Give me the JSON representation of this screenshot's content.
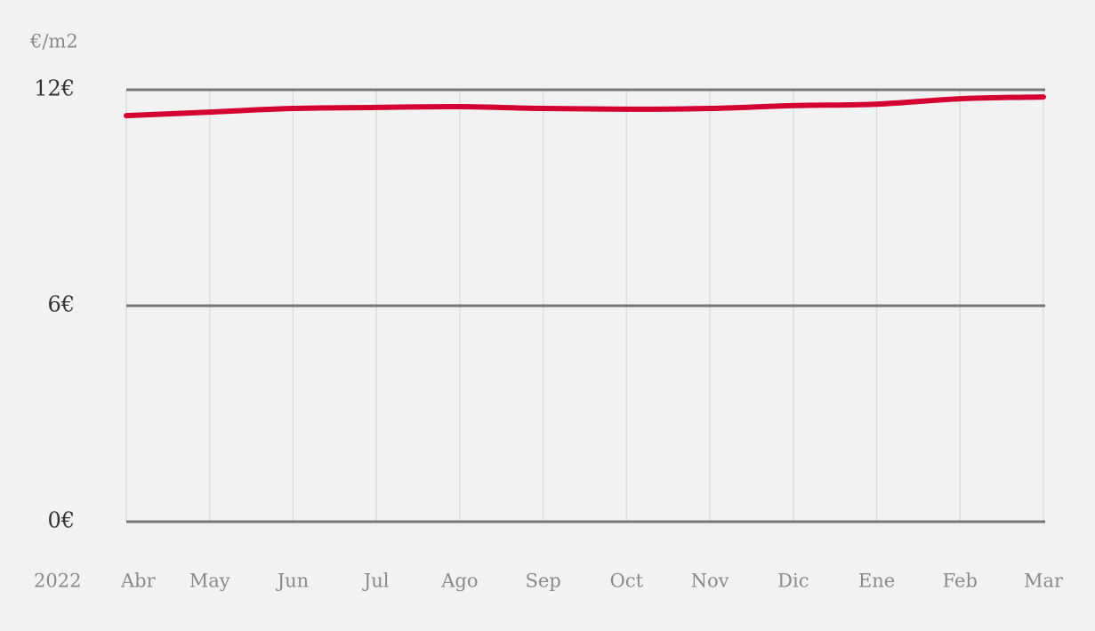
{
  "chart_data": {
    "type": "line",
    "y_label": "€/m2",
    "year_label": "2022",
    "categories": [
      "Abr",
      "May",
      "Jun",
      "Jul",
      "Ago",
      "Sep",
      "Oct",
      "Nov",
      "Dic",
      "Ene",
      "Feb",
      "Mar"
    ],
    "values": [
      11.28,
      11.38,
      11.48,
      11.51,
      11.53,
      11.48,
      11.46,
      11.48,
      11.56,
      11.6,
      11.75,
      11.8
    ],
    "color": "#d50032",
    "ylim": [
      0,
      12
    ],
    "yticks": [
      {
        "value": 0,
        "label": "0€"
      },
      {
        "value": 6,
        "label": "6€"
      },
      {
        "value": 12,
        "label": "12€"
      }
    ],
    "grid": true
  }
}
